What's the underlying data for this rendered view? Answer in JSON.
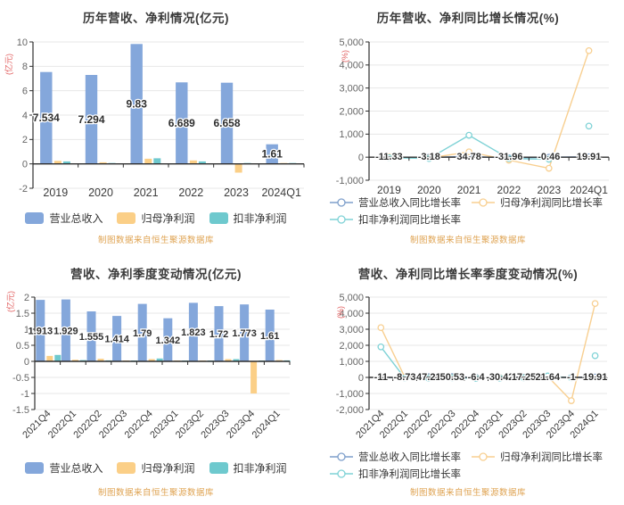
{
  "source_note": "制图数据来自恒生聚源数据库",
  "colors": {
    "revenue_bar": "#84A7DB",
    "net_profit_bar": "#FBCF87",
    "non_gaap_bar": "#6EC9CE",
    "revenue_line": "#7E9FCB",
    "net_profit_line": "#F8CF90",
    "non_gaap_line": "#7FD2D6",
    "axis": "#2e2e2e",
    "grid": "#e7e7e7",
    "tick_text": "#666666",
    "label_text": "#2f2f2f",
    "category_text": "#3c3c3c",
    "ylabel_red": "#e05b5b",
    "source_text": "#dfa352"
  },
  "chart_data": [
    {
      "type": "bar",
      "title": "历年营收、净利情况(亿元)",
      "ylabel": "(亿元)",
      "ylim": [
        -2,
        10
      ],
      "yticks": [
        "10",
        "8",
        "6",
        "4",
        "2",
        "0",
        "-2"
      ],
      "grid": true,
      "legend_position": "bottom",
      "categories": [
        "2019",
        "2020",
        "2021",
        "2022",
        "2023",
        "2024Q1"
      ],
      "series": [
        {
          "name": "营业总收入",
          "color_key": "revenue_bar",
          "values": [
            7.534,
            7.294,
            9.83,
            6.689,
            6.658,
            1.61
          ],
          "labels": [
            "7.534",
            "7.294",
            "9.83",
            "6.689",
            "6.658",
            "1.61"
          ]
        },
        {
          "name": "归母净利润",
          "color_key": "net_profit_bar",
          "values": [
            0.25,
            0.13,
            0.42,
            0.28,
            -0.72,
            0.04
          ]
        },
        {
          "name": "扣非净利润",
          "color_key": "non_gaap_bar",
          "values": [
            0.2,
            0.04,
            0.46,
            0.2,
            0.01,
            0.02
          ]
        }
      ]
    },
    {
      "type": "line",
      "title": "历年营收、净利同比增长情况(%)",
      "ylabel": "(%)",
      "ylim": [
        -1000,
        5000
      ],
      "yticks": [
        "5,000",
        "4,000",
        "3,000",
        "2,000",
        "1,000",
        "0",
        "-1,000"
      ],
      "grid": true,
      "legend_position": "bottom",
      "categories": [
        "2019",
        "2020",
        "2021",
        "2022",
        "2023",
        "2024Q1"
      ],
      "series": [
        {
          "name": "营业总收入同比增长率",
          "color_key": "revenue_line",
          "values": [
            -11.33,
            -3.18,
            34.78,
            -31.96,
            -0.46,
            19.91
          ],
          "labels": [
            "-11.33",
            "-3.18",
            "34.78",
            "-31.96",
            "-0.46",
            "19.91"
          ]
        },
        {
          "name": "归母净利润同比增长率",
          "color_key": "net_profit_line",
          "values": [
            5,
            -40,
            230,
            -130,
            -480,
            4620
          ]
        },
        {
          "name": "扣非净利润同比增长率",
          "color_key": "non_gaap_line",
          "values": [
            -20,
            -60,
            950,
            -60,
            -90,
            1350
          ],
          "break_before_last": true
        }
      ]
    },
    {
      "type": "bar",
      "title": "营收、净利季度变动情况(亿元)",
      "ylabel": "(亿元)",
      "ylim": [
        -1.5,
        2
      ],
      "yticks": [
        "2",
        "1.5",
        "1",
        "0.5",
        "0",
        "-0.5",
        "-1",
        "-1.5"
      ],
      "grid": true,
      "legend_position": "bottom",
      "categories": [
        "2021Q4",
        "2022Q1",
        "2022Q2",
        "2022Q3",
        "2022Q4",
        "2023Q1",
        "2023Q2",
        "2023Q3",
        "2023Q4",
        "2024Q1"
      ],
      "series": [
        {
          "name": "营业总收入",
          "color_key": "revenue_bar",
          "values": [
            1.913,
            1.929,
            1.555,
            1.414,
            1.79,
            1.342,
            1.823,
            1.72,
            1.773,
            1.61
          ],
          "labels": [
            "1.913",
            "1.929",
            "1.555",
            "1.414",
            "1.79",
            "1.342",
            "1.823",
            "1.72",
            "1.773",
            "1.61"
          ]
        },
        {
          "name": "归母净利润",
          "color_key": "net_profit_bar",
          "values": [
            0.17,
            0.05,
            0.08,
            0.01,
            0.07,
            0.01,
            0.02,
            0.07,
            -1.0,
            0.04
          ]
        },
        {
          "name": "扣非净利润",
          "color_key": "non_gaap_bar",
          "values": [
            0.2,
            0.04,
            0.03,
            0.01,
            0.09,
            0.01,
            0.02,
            0.07,
            0.01,
            0.03
          ]
        }
      ]
    },
    {
      "type": "line",
      "title": "营收、净利同比增长率季度变动情况(%)",
      "ylabel": "(%)",
      "ylim": [
        -2000,
        5000
      ],
      "yticks": [
        "5,000",
        "4,000",
        "3,000",
        "2,000",
        "1,000",
        "0",
        "-1,000",
        "-2,000"
      ],
      "grid": true,
      "legend_position": "bottom",
      "categories": [
        "2021Q4",
        "2022Q1",
        "2022Q2",
        "2022Q3",
        "2022Q4",
        "2023Q1",
        "2023Q2",
        "2023Q3",
        "2023Q4",
        "2024Q1"
      ],
      "series": [
        {
          "name": "营业总收入同比增长率",
          "color_key": "revenue_line",
          "values": [
            -11,
            -8.73,
            47.21,
            50.53,
            -6.4,
            -30.42,
            17.25,
            21.64,
            -1,
            19.91
          ],
          "labels": [
            "-11",
            "-8.73",
            "47.21",
            "50.53",
            "-6.4",
            "-30.42",
            "17.25",
            "21.64",
            "-1",
            "19.91"
          ]
        },
        {
          "name": "归母净利润同比增长率",
          "color_key": "net_profit_line",
          "values": [
            3100,
            20,
            -30,
            -10,
            -40,
            -30,
            -10,
            60,
            -1450,
            4600
          ]
        },
        {
          "name": "扣非净利润同比增长率",
          "color_key": "non_gaap_line",
          "values": [
            1900,
            -40,
            -50,
            -30,
            -60,
            -50,
            -30,
            90,
            -20,
            1350
          ],
          "break_before_last": true
        }
      ]
    }
  ]
}
